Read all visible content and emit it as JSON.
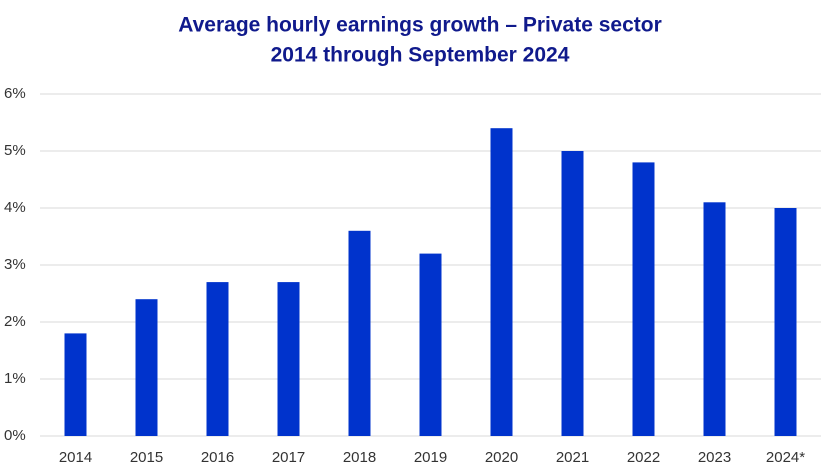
{
  "chart_data": {
    "type": "bar",
    "title": "Average hourly earnings growth – Private sector",
    "subtitle": "2014 through September 2024",
    "categories": [
      "2014",
      "2015",
      "2016",
      "2017",
      "2018",
      "2019",
      "2020",
      "2021",
      "2022",
      "2023",
      "2024*"
    ],
    "values": [
      1.8,
      2.4,
      2.7,
      2.7,
      3.6,
      3.2,
      5.4,
      5.0,
      4.8,
      4.1,
      4.0
    ],
    "color": "#0033cc",
    "ylim": [
      0,
      6
    ],
    "yticks": [
      {
        "value": 0,
        "label": "0%"
      },
      {
        "value": 1,
        "label": "1%"
      },
      {
        "value": 2,
        "label": "2%"
      },
      {
        "value": 3,
        "label": "3%"
      },
      {
        "value": 4,
        "label": "4%"
      },
      {
        "value": 5,
        "label": "5%"
      },
      {
        "value": 6,
        "label": "6%"
      }
    ],
    "grid": true
  }
}
